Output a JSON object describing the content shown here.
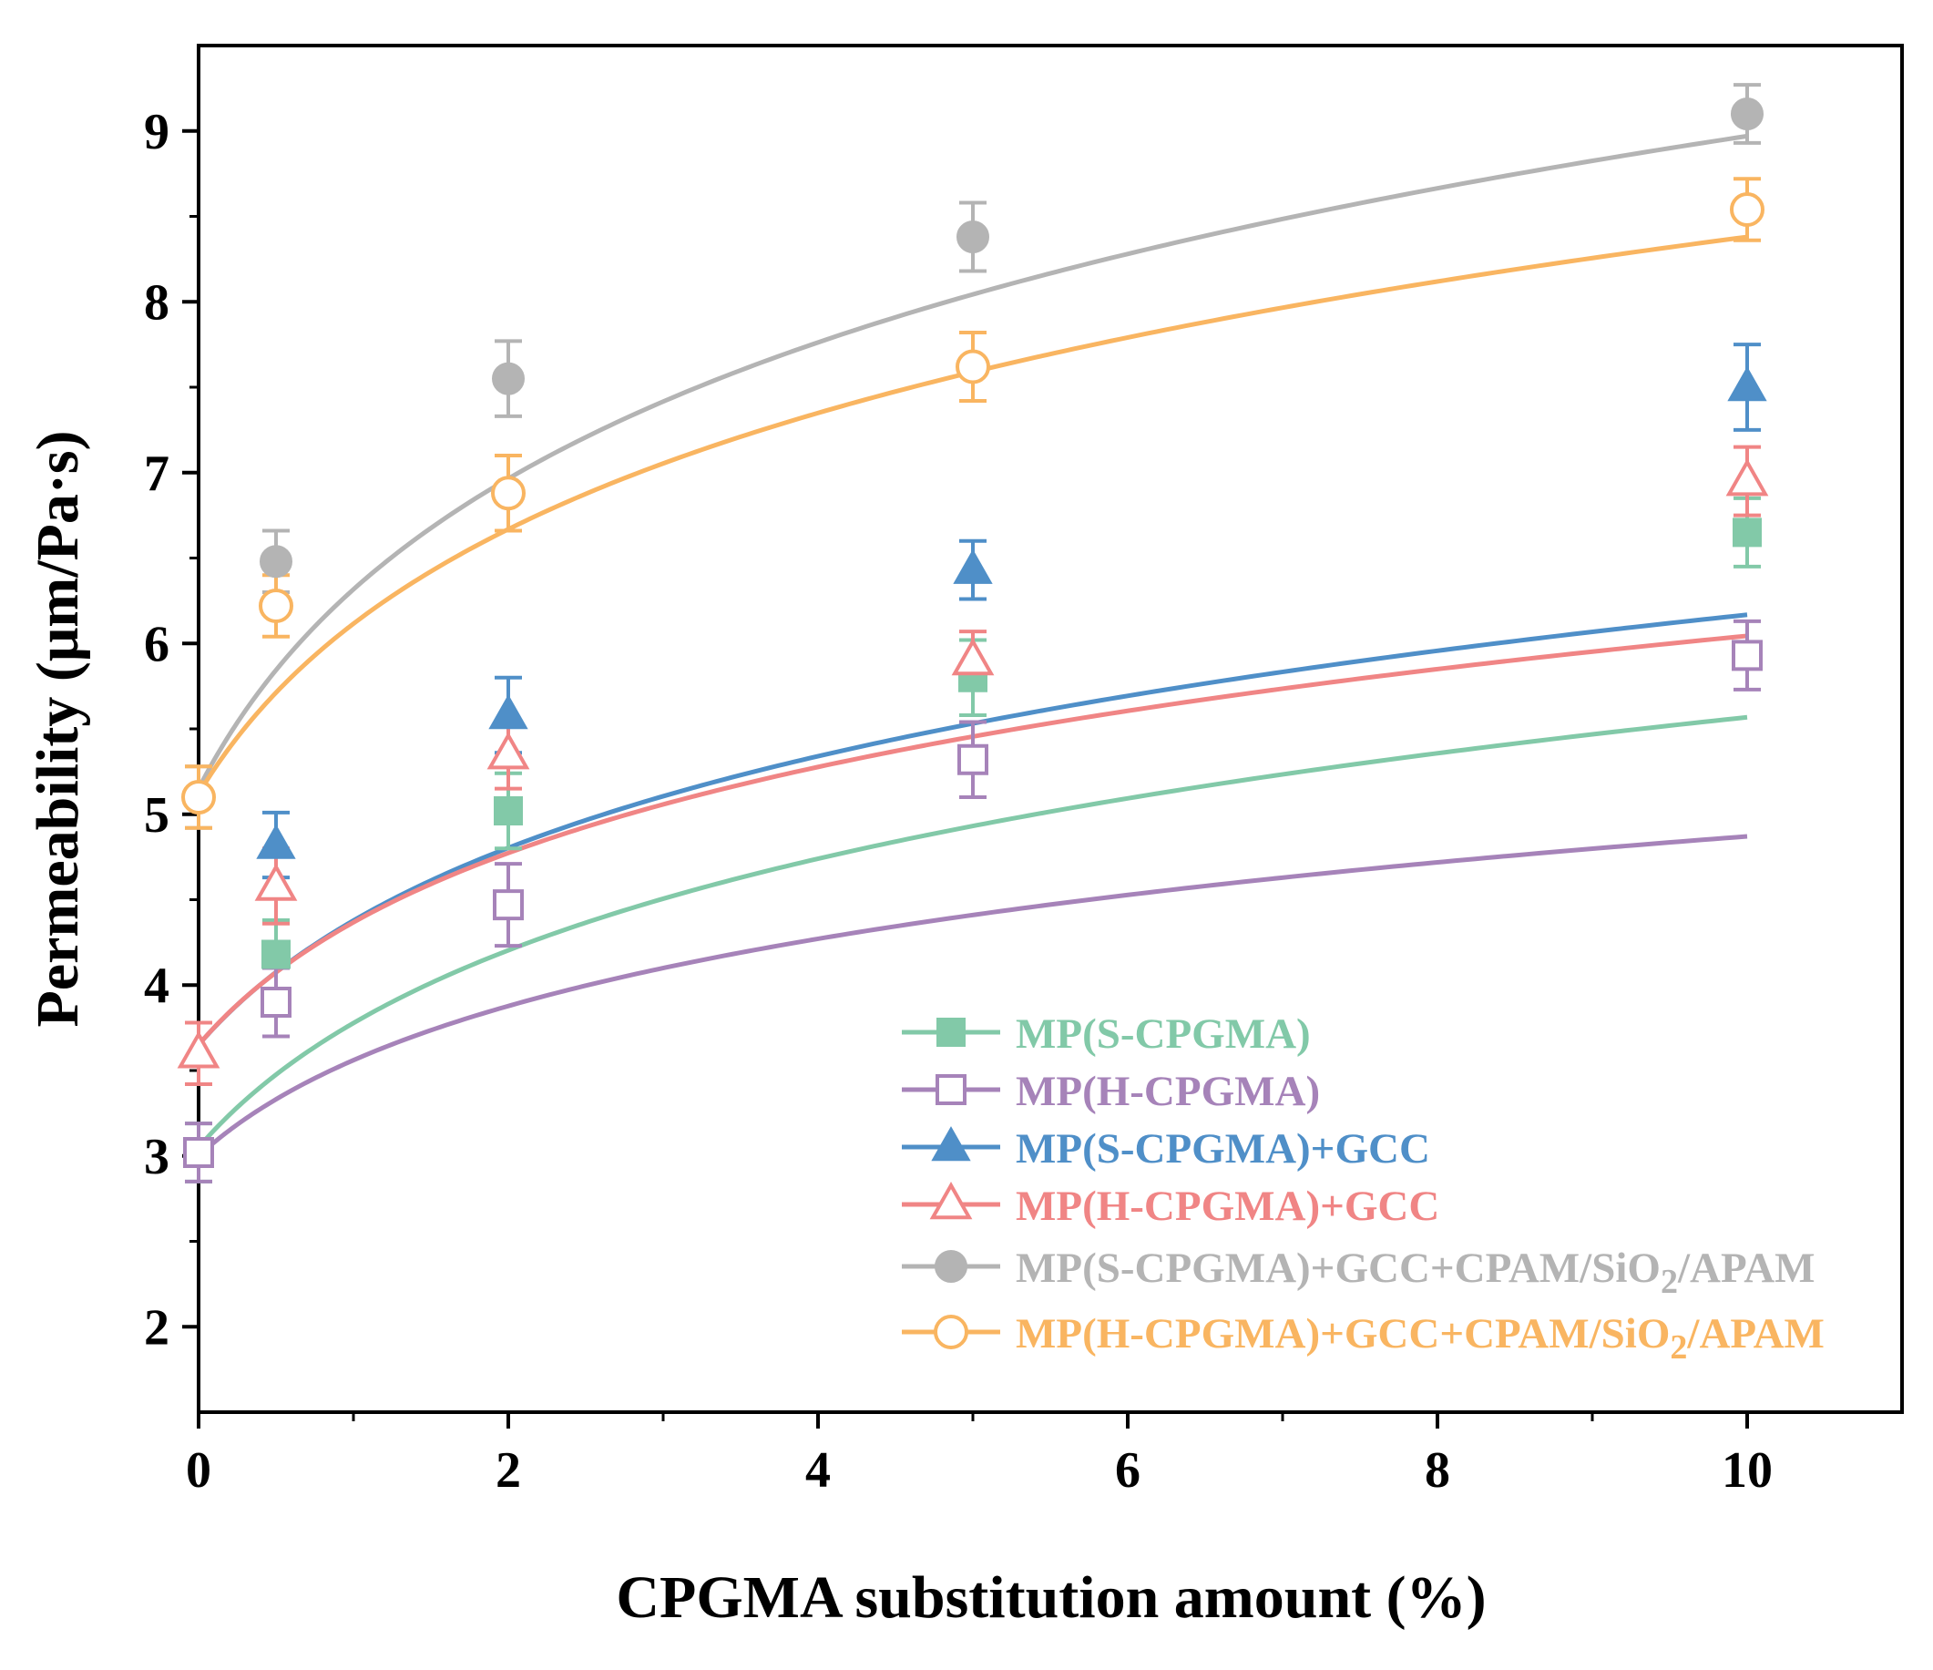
{
  "chart_data": {
    "type": "line",
    "title": "",
    "xlabel": "CPGMA substitution amount (%)",
    "ylabel": "Permeability (μm/Pa·s)",
    "xlim": [
      0,
      11
    ],
    "ylim": [
      1.5,
      9.5
    ],
    "x_ticks": [
      0,
      2,
      4,
      6,
      8,
      10
    ],
    "y_ticks": [
      2,
      3,
      4,
      5,
      6,
      7,
      8,
      9
    ],
    "x_tick_labels": [
      "0",
      "2",
      "4",
      "6",
      "8",
      "10"
    ],
    "y_tick_labels": [
      "2",
      "3",
      "4",
      "5",
      "6",
      "7",
      "8",
      "9"
    ],
    "x": [
      0,
      0.5,
      2,
      5,
      10
    ],
    "legend_position": "bottom-right",
    "series": [
      {
        "name": "MP(S-CPGMA)",
        "label_main": "MP(S-CPGMA)",
        "label_sub": "",
        "label_tail": "",
        "color": "#82c9a8",
        "marker": "square",
        "filled": true,
        "values": [
          3.02,
          4.18,
          5.02,
          5.8,
          6.65
        ],
        "errors": [
          0.17,
          0.2,
          0.22,
          0.22,
          0.2
        ],
        "fit": {
          "a": 3.05,
          "b": 1.05,
          "c": 1.0
        }
      },
      {
        "name": "MP(H-CPGMA)",
        "label_main": "MP(H-CPGMA)",
        "label_sub": "",
        "label_tail": "",
        "color": "#a683b9",
        "marker": "square",
        "filled": false,
        "values": [
          3.02,
          3.9,
          4.47,
          5.32,
          5.93
        ],
        "errors": [
          0.17,
          0.2,
          0.24,
          0.22,
          0.2
        ],
        "fit": {
          "a": 3.0,
          "b": 0.75,
          "c": 0.9
        }
      },
      {
        "name": "MP(S-CPGMA)+GCC",
        "label_main": "MP(S-CPGMA)+GCC",
        "label_sub": "",
        "label_tail": "",
        "color": "#4f8fc8",
        "marker": "triangle",
        "filled": true,
        "values": [
          3.6,
          4.82,
          5.58,
          6.43,
          7.5
        ],
        "errors": [
          0.18,
          0.19,
          0.22,
          0.17,
          0.25
        ],
        "fit": {
          "a": 3.65,
          "b": 1.05,
          "c": 1.0
        }
      },
      {
        "name": "MP(H-CPGMA)+GCC",
        "label_main": "MP(H-CPGMA)+GCC",
        "label_sub": "",
        "label_tail": "",
        "color": "#f08585",
        "marker": "triangle",
        "filled": false,
        "values": [
          3.6,
          4.58,
          5.35,
          5.9,
          6.95
        ],
        "errors": [
          0.18,
          0.22,
          0.2,
          0.17,
          0.2
        ],
        "fit": {
          "a": 3.65,
          "b": 0.96,
          "c": 0.9
        }
      },
      {
        "name": "MP(S-CPGMA)+GCC+CPAM/SiO2/APAM",
        "label_main": "MP(S-CPGMA)+GCC+CPAM/SiO",
        "label_sub": "2",
        "label_tail": "/APAM",
        "color": "#b4b4b4",
        "marker": "circle",
        "filled": true,
        "values": [
          5.1,
          6.48,
          7.55,
          8.38,
          9.1
        ],
        "errors": [
          0.18,
          0.18,
          0.22,
          0.2,
          0.17
        ],
        "fit": {
          "a": 5.15,
          "b": 1.5,
          "c": 0.85
        }
      },
      {
        "name": "MP(H-CPGMA)+GCC+CPAM/SiO2/APAM",
        "label_main": "MP(H-CPGMA)+GCC+CPAM/SiO",
        "label_sub": "2",
        "label_tail": "/APAM",
        "color": "#f9b561",
        "marker": "circle",
        "filled": false,
        "values": [
          5.1,
          6.22,
          6.88,
          7.62,
          8.54
        ],
        "errors": [
          0.18,
          0.18,
          0.22,
          0.2,
          0.18
        ],
        "fit": {
          "a": 5.12,
          "b": 1.28,
          "c": 0.85
        }
      }
    ]
  }
}
